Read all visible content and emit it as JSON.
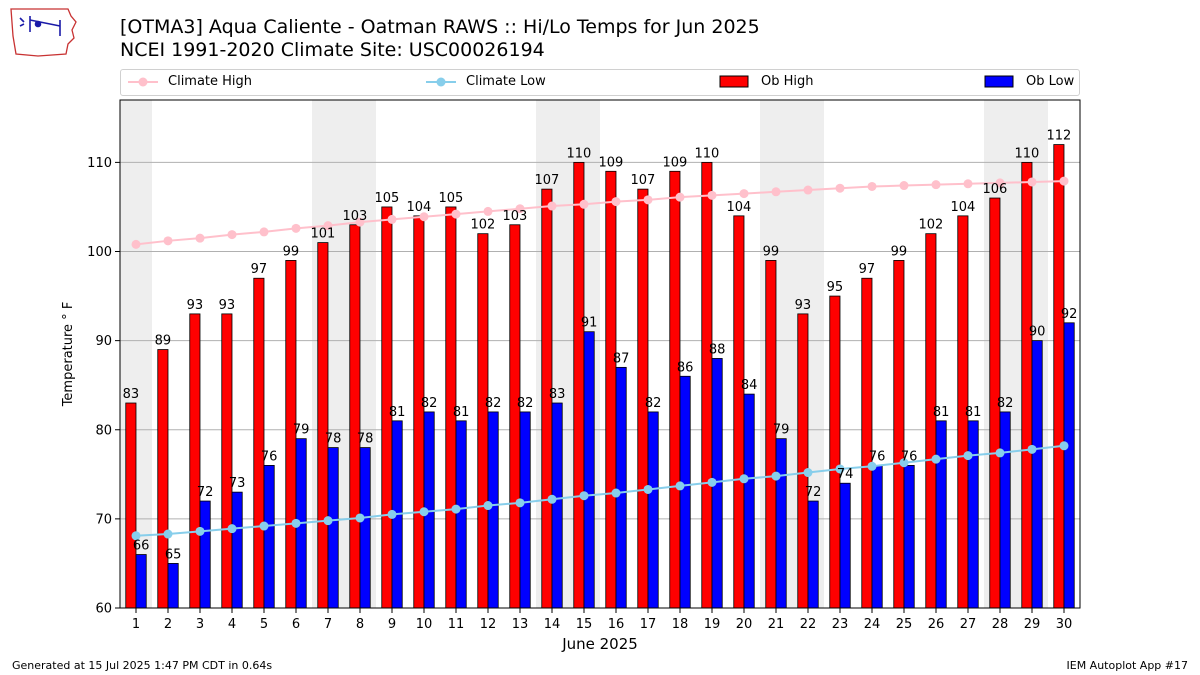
{
  "logo": {
    "text": "IEM",
    "icon": "iem-iowa-map-logo"
  },
  "header": {
    "title_line1": "[OTMA3] Aqua Caliente - Oatman RAWS :: Hi/Lo Temps for Jun 2025",
    "title_line2": "NCEI 1991-2020 Climate Site: USC00026194"
  },
  "footer": {
    "generated": "Generated at 15 Jul 2025 1:47 PM CDT in 0.64s",
    "app": "IEM Autoplot App #17"
  },
  "colors": {
    "ob_high": "#ff0000",
    "ob_low": "#0000ff",
    "climate_high": "#ffc0cb",
    "climate_low": "#87ceeb",
    "weekend_shade": "#eeeeee",
    "grid": "#b0b0b0"
  },
  "chart_data": {
    "type": "bar",
    "xlabel": "June 2025",
    "ylabel": "Temperature ° F",
    "ylim": [
      60,
      117
    ],
    "yticks": [
      60,
      70,
      80,
      90,
      100,
      110
    ],
    "grid": "horizontal",
    "legend_placement": "top",
    "categories": [
      "1",
      "2",
      "3",
      "4",
      "5",
      "6",
      "7",
      "8",
      "9",
      "10",
      "11",
      "12",
      "13",
      "14",
      "15",
      "16",
      "17",
      "18",
      "19",
      "20",
      "21",
      "22",
      "23",
      "24",
      "25",
      "26",
      "27",
      "28",
      "29",
      "30"
    ],
    "shaded_days": [
      "1",
      "7",
      "8",
      "14",
      "15",
      "21",
      "22",
      "28",
      "29"
    ],
    "series": [
      {
        "name": "Climate High",
        "kind": "line",
        "values": [
          100.8,
          101.2,
          101.5,
          101.9,
          102.2,
          102.6,
          102.9,
          103.3,
          103.6,
          103.9,
          104.2,
          104.5,
          104.8,
          105.1,
          105.3,
          105.6,
          105.8,
          106.1,
          106.3,
          106.5,
          106.7,
          106.9,
          107.1,
          107.3,
          107.4,
          107.5,
          107.6,
          107.7,
          107.8,
          107.9
        ]
      },
      {
        "name": "Climate Low",
        "kind": "line",
        "values": [
          68.1,
          68.3,
          68.6,
          68.9,
          69.2,
          69.5,
          69.8,
          70.1,
          70.5,
          70.8,
          71.1,
          71.5,
          71.8,
          72.2,
          72.6,
          72.9,
          73.3,
          73.7,
          74.1,
          74.5,
          74.8,
          75.2,
          75.6,
          75.9,
          76.3,
          76.7,
          77.1,
          77.4,
          77.8,
          78.2
        ]
      },
      {
        "name": "Ob High",
        "kind": "bar",
        "values": [
          83,
          89,
          93,
          93,
          97,
          99,
          101,
          103,
          105,
          104,
          105,
          102,
          103,
          107,
          110,
          109,
          107,
          109,
          110,
          104,
          99,
          93,
          95,
          97,
          99,
          102,
          104,
          106,
          110,
          112
        ]
      },
      {
        "name": "Ob Low",
        "kind": "bar",
        "values": [
          66,
          65,
          72,
          73,
          76,
          79,
          78,
          78,
          81,
          82,
          81,
          82,
          82,
          83,
          91,
          87,
          82,
          86,
          88,
          84,
          79,
          72,
          74,
          76,
          76,
          81,
          81,
          82,
          90,
          92
        ]
      }
    ]
  }
}
